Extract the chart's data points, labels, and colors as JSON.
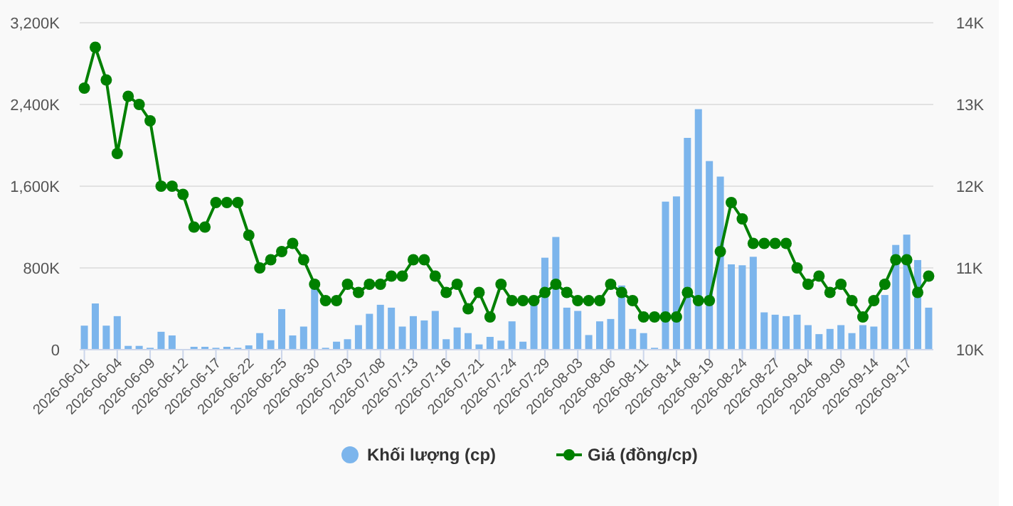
{
  "chart_data": {
    "type": "bar",
    "categories": [
      "2026-06-01",
      null,
      null,
      "2026-06-04",
      null,
      null,
      "2026-06-09",
      null,
      null,
      "2026-06-12",
      null,
      null,
      "2026-06-17",
      null,
      null,
      "2026-06-22",
      null,
      null,
      "2026-06-25",
      null,
      null,
      "2026-06-30",
      null,
      null,
      "2026-07-03",
      null,
      null,
      "2026-07-08",
      null,
      null,
      "2026-07-13",
      null,
      null,
      "2026-07-16",
      null,
      null,
      "2026-07-21",
      null,
      null,
      "2026-07-24",
      null,
      null,
      "2026-07-29",
      null,
      null,
      "2026-08-03",
      null,
      null,
      "2026-08-06",
      null,
      null,
      "2026-08-11",
      null,
      null,
      "2026-08-14",
      null,
      null,
      "2026-08-19",
      null,
      null,
      "2026-08-24",
      null,
      null,
      "2026-08-27",
      null,
      null,
      "2026-09-04",
      null,
      null,
      "2026-09-09",
      null,
      null,
      "2026-09-14",
      null,
      null,
      "2026-09-17",
      null,
      null
    ],
    "series": [
      {
        "name": "Khối lượng (cp)",
        "color": "#7cb5ec",
        "values": [
          235000,
          452000,
          235000,
          328000,
          37000,
          37000,
          18000,
          175000,
          139000,
          5000,
          28000,
          28000,
          18000,
          28000,
          18000,
          42000,
          162000,
          92000,
          397000,
          139000,
          226000,
          605000,
          18000,
          78000,
          102000,
          240000,
          351000,
          439000,
          411000,
          226000,
          328000,
          286000,
          379000,
          102000,
          217000,
          162000,
          51000,
          125000,
          88000,
          277000,
          78000,
          526000,
          900000,
          1103000,
          411000,
          379000,
          143000,
          277000,
          300000,
          628000,
          203000,
          162000,
          18000,
          1449000,
          1500000,
          2073000,
          2354000,
          1846000,
          1694000,
          835000,
          826000,
          909000,
          365000,
          342000,
          328000,
          342000,
          240000,
          152000,
          203000,
          240000,
          162000,
          240000,
          226000,
          535000,
          1025000,
          1126000,
          877000,
          411000
        ]
      },
      {
        "name": "Giá (đồng/cp)",
        "type": "line",
        "axis": "y2",
        "color": "#008000",
        "values": [
          13200,
          13700,
          13300,
          12400,
          13100,
          13000,
          12800,
          12000,
          12000,
          11900,
          11500,
          11500,
          11800,
          11800,
          11800,
          11400,
          11000,
          11100,
          11200,
          11300,
          11100,
          10800,
          10600,
          10600,
          10800,
          10700,
          10800,
          10800,
          10900,
          10900,
          11100,
          11100,
          10900,
          10700,
          10800,
          10500,
          10700,
          10400,
          10800,
          10600,
          10600,
          10600,
          10700,
          10800,
          10700,
          10600,
          10600,
          10600,
          10800,
          10700,
          10600,
          10400,
          10400,
          10400,
          10400,
          10700,
          10600,
          10600,
          11200,
          11800,
          11600,
          11300,
          11300,
          11300,
          11300,
          11000,
          10800,
          10900,
          10700,
          10800,
          10600,
          10400,
          10600,
          10800,
          11100,
          11100,
          10700,
          10900
        ]
      }
    ],
    "ylim": [
      0,
      3200000
    ],
    "yticks": [
      0,
      {
        "value": 800000,
        "label": "800K"
      },
      {
        "value": 1600000,
        "label": "1,600K"
      },
      {
        "value": 2400000,
        "label": "2,400K"
      },
      {
        "value": 3200000,
        "label": "3,200K"
      }
    ],
    "y2lim": [
      10000,
      14000
    ],
    "y2ticks": [
      {
        "value": 10000,
        "label": "10K"
      },
      {
        "value": 11000,
        "label": "11K"
      },
      {
        "value": 12000,
        "label": "12K"
      },
      {
        "value": 13000,
        "label": "13K"
      },
      {
        "value": 14000,
        "label": "14K"
      }
    ],
    "grid": "y",
    "legend": "bottom",
    "marker": "circle",
    "line_style": "solid"
  }
}
